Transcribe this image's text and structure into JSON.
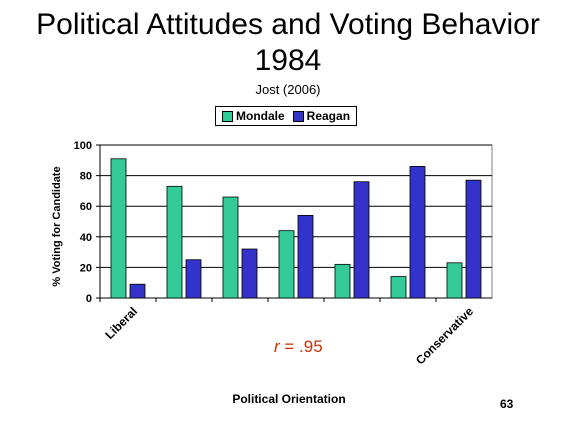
{
  "title_line1": "Political Attitudes and Voting Behavior",
  "title_line2": "1984",
  "subtitle": "Jost (2006)",
  "annotation": {
    "prefix": "r",
    "text": " = .95",
    "color": "#cc3300"
  },
  "slide_number": "63",
  "chart_data": {
    "type": "bar",
    "categories": [
      "Liberal",
      "",
      "",
      "",
      "",
      "",
      "Conservative"
    ],
    "series": [
      {
        "name": "Mondale",
        "color": "#33cc99",
        "values": [
          91,
          73,
          66,
          44,
          22,
          14,
          23
        ]
      },
      {
        "name": "Reagan",
        "color": "#3333cc",
        "values": [
          9,
          25,
          32,
          54,
          76,
          86,
          77
        ]
      }
    ],
    "ylim": [
      0,
      100
    ],
    "yticks": [
      "0",
      "20",
      "40",
      "60",
      "80",
      "100"
    ],
    "ylabel": "% Voting for Candidate",
    "xlabel": "Political Orientation",
    "grid": true,
    "legend": "top"
  }
}
